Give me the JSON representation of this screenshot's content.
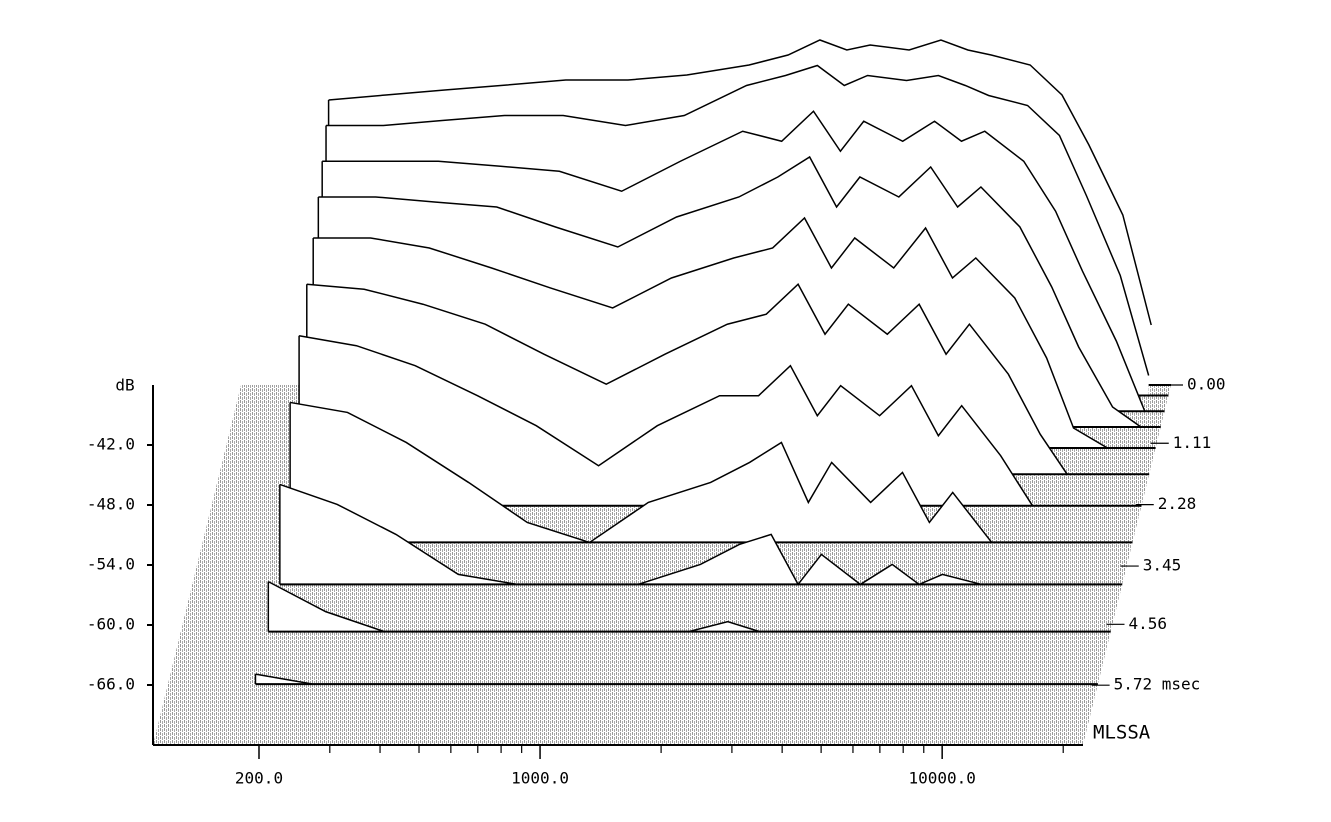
{
  "chart_data": {
    "type": "waterfall",
    "y_label": "dB",
    "annotation": "MLSSA",
    "x": [
      180,
      250,
      350,
      500,
      700,
      1000,
      1400,
      2000,
      2500,
      3000,
      3500,
      4000,
      5000,
      6000,
      7000,
      8000,
      10000,
      12000,
      14000,
      17000,
      20000
    ],
    "xlim": [
      109,
      22400
    ],
    "xticks": [
      {
        "value": 200,
        "label": "200.0"
      },
      {
        "value": 1000,
        "label": "1000.0"
      },
      {
        "value": 10000,
        "label": "10000.0"
      }
    ],
    "xminorticks": [
      300,
      400,
      500,
      600,
      700,
      800,
      900,
      2000,
      3000,
      4000,
      5000,
      6000,
      7000,
      8000,
      9000,
      20000
    ],
    "log_x": true,
    "ylim": [
      -72,
      -36
    ],
    "yticks": [
      {
        "value": -42,
        "label": "-42.0"
      },
      {
        "value": -48,
        "label": "-48.0"
      },
      {
        "value": -54,
        "label": "-54.0"
      },
      {
        "value": -60,
        "label": "-60.0"
      },
      {
        "value": -66,
        "label": "-66.0"
      }
    ],
    "tlim": [
      0,
      6.86
    ],
    "tticks": [
      {
        "value": 0,
        "label": "0.00"
      },
      1.11,
      2.28,
      3.45,
      4.56,
      {
        "value": 5.72,
        "label": "5.72 msec"
      }
    ],
    "color": "#000000",
    "series": [
      {
        "time": 0,
        "values": [
          -43.5,
          -43,
          -42.5,
          -42,
          -41.5,
          -41.5,
          -41,
          -40,
          -39,
          -37.5,
          -38.5,
          -38,
          -38.5,
          -37.5,
          -38.5,
          -39,
          -40,
          -43,
          -48,
          -55,
          -66
        ]
      },
      {
        "time": 0.2,
        "values": [
          -45,
          -45,
          -44.5,
          -44,
          -44,
          -45,
          -44,
          -41,
          -40,
          -39,
          -41,
          -40,
          -40.5,
          -40,
          -41,
          -42,
          -43,
          -46,
          -52,
          -60,
          -70
        ]
      },
      {
        "time": 0.5,
        "values": [
          -47,
          -47,
          -47,
          -47.5,
          -48,
          -50,
          -47,
          -44,
          -45,
          -42,
          -46,
          -43,
          -45,
          -43,
          -45,
          -44,
          -47,
          -52,
          -58,
          -65,
          -72
        ]
      },
      {
        "time": 0.8,
        "values": [
          -49,
          -49,
          -49.5,
          -50,
          -52,
          -54,
          -51,
          -49,
          -47,
          -45,
          -50,
          -47,
          -49,
          -46,
          -50,
          -48,
          -52,
          -58,
          -64,
          -70,
          -72
        ]
      },
      {
        "time": 1.2,
        "values": [
          -51,
          -51,
          -52,
          -54,
          -56,
          -58,
          -55,
          -53,
          -52,
          -49,
          -54,
          -51,
          -54,
          -50,
          -55,
          -53,
          -57,
          -63,
          -70,
          -72,
          -72
        ]
      },
      {
        "time": 1.7,
        "values": [
          -53,
          -53.5,
          -55,
          -57,
          -60,
          -63,
          -60,
          -57,
          -56,
          -53,
          -58,
          -55,
          -58,
          -55,
          -60,
          -57,
          -62,
          -68,
          -72,
          -72,
          -72
        ]
      },
      {
        "time": 2.3,
        "values": [
          -55,
          -56,
          -58,
          -61,
          -64,
          -68,
          -64,
          -61,
          -61,
          -58,
          -63,
          -60,
          -63,
          -60,
          -65,
          -62,
          -67,
          -72,
          -72,
          -72,
          -72
        ]
      },
      {
        "time": 3.0,
        "values": [
          -58,
          -59,
          -62,
          -66,
          -70,
          -72,
          -68,
          -66,
          -64,
          -62,
          -68,
          -64,
          -68,
          -65,
          -70,
          -67,
          -72,
          -72,
          -72,
          -72,
          -72
        ]
      },
      {
        "time": 3.8,
        "values": [
          -62,
          -64,
          -67,
          -71,
          -72,
          -72,
          -72,
          -70,
          -68,
          -67,
          -72,
          -69,
          -72,
          -70,
          -72,
          -71,
          -72,
          -72,
          -72,
          -72,
          -72
        ]
      },
      {
        "time": 4.7,
        "values": [
          -67,
          -70,
          -72,
          -72,
          -72,
          -72,
          -72,
          -72,
          -71,
          -72,
          -72,
          -72,
          -72,
          -72,
          -72,
          -72,
          -72,
          -72,
          -72,
          -72,
          -72
        ]
      },
      {
        "time": 5.7,
        "values": [
          -71,
          -72,
          -72,
          -72,
          -72,
          -72,
          -72,
          -72,
          -72,
          -72,
          -72,
          -72,
          -72,
          -72,
          -72,
          -72,
          -72,
          -72,
          -72,
          -72,
          -72
        ]
      }
    ]
  }
}
